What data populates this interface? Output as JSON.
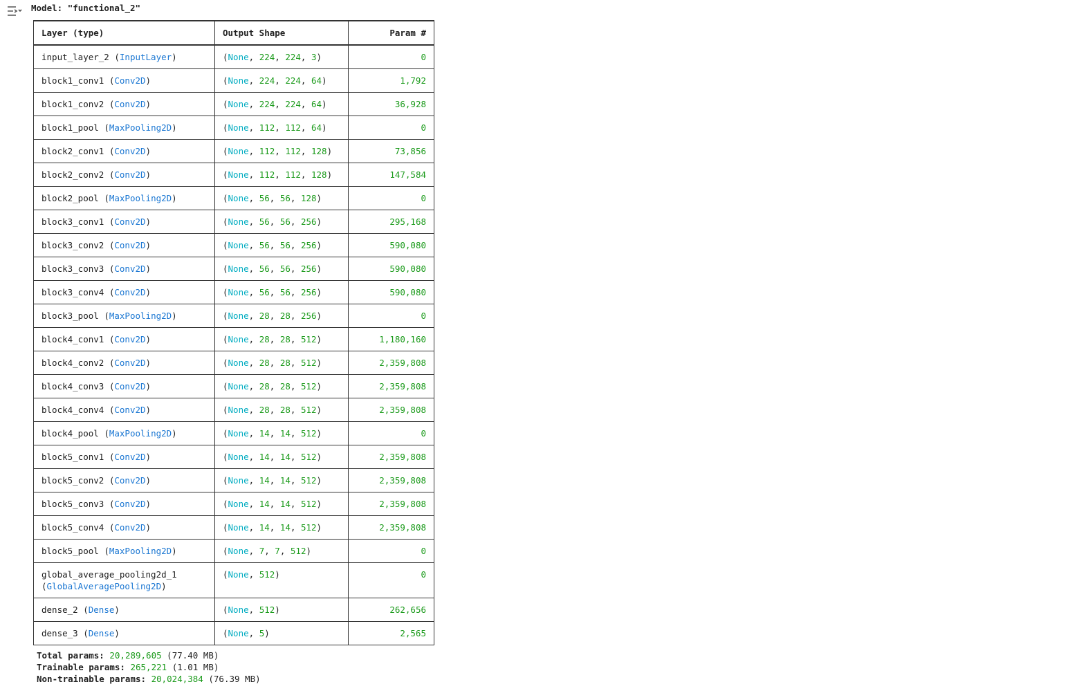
{
  "header": {
    "title_label": "Model:",
    "title": "\"functional_2\""
  },
  "format": {
    "open": "(",
    "sep": ", ",
    "close": ")"
  },
  "table": {
    "columns": [
      "Layer (type)",
      "Output Shape",
      "Param #"
    ],
    "rows": [
      {
        "name": "input_layer_2",
        "type": "InputLayer",
        "shape": [
          "None",
          224,
          224,
          3
        ],
        "params": "0"
      },
      {
        "name": "block1_conv1",
        "type": "Conv2D",
        "shape": [
          "None",
          224,
          224,
          64
        ],
        "params": "1,792"
      },
      {
        "name": "block1_conv2",
        "type": "Conv2D",
        "shape": [
          "None",
          224,
          224,
          64
        ],
        "params": "36,928"
      },
      {
        "name": "block1_pool",
        "type": "MaxPooling2D",
        "shape": [
          "None",
          112,
          112,
          64
        ],
        "params": "0"
      },
      {
        "name": "block2_conv1",
        "type": "Conv2D",
        "shape": [
          "None",
          112,
          112,
          128
        ],
        "params": "73,856"
      },
      {
        "name": "block2_conv2",
        "type": "Conv2D",
        "shape": [
          "None",
          112,
          112,
          128
        ],
        "params": "147,584"
      },
      {
        "name": "block2_pool",
        "type": "MaxPooling2D",
        "shape": [
          "None",
          56,
          56,
          128
        ],
        "params": "0"
      },
      {
        "name": "block3_conv1",
        "type": "Conv2D",
        "shape": [
          "None",
          56,
          56,
          256
        ],
        "params": "295,168"
      },
      {
        "name": "block3_conv2",
        "type": "Conv2D",
        "shape": [
          "None",
          56,
          56,
          256
        ],
        "params": "590,080"
      },
      {
        "name": "block3_conv3",
        "type": "Conv2D",
        "shape": [
          "None",
          56,
          56,
          256
        ],
        "params": "590,080"
      },
      {
        "name": "block3_conv4",
        "type": "Conv2D",
        "shape": [
          "None",
          56,
          56,
          256
        ],
        "params": "590,080"
      },
      {
        "name": "block3_pool",
        "type": "MaxPooling2D",
        "shape": [
          "None",
          28,
          28,
          256
        ],
        "params": "0"
      },
      {
        "name": "block4_conv1",
        "type": "Conv2D",
        "shape": [
          "None",
          28,
          28,
          512
        ],
        "params": "1,180,160"
      },
      {
        "name": "block4_conv2",
        "type": "Conv2D",
        "shape": [
          "None",
          28,
          28,
          512
        ],
        "params": "2,359,808"
      },
      {
        "name": "block4_conv3",
        "type": "Conv2D",
        "shape": [
          "None",
          28,
          28,
          512
        ],
        "params": "2,359,808"
      },
      {
        "name": "block4_conv4",
        "type": "Conv2D",
        "shape": [
          "None",
          28,
          28,
          512
        ],
        "params": "2,359,808"
      },
      {
        "name": "block4_pool",
        "type": "MaxPooling2D",
        "shape": [
          "None",
          14,
          14,
          512
        ],
        "params": "0"
      },
      {
        "name": "block5_conv1",
        "type": "Conv2D",
        "shape": [
          "None",
          14,
          14,
          512
        ],
        "params": "2,359,808"
      },
      {
        "name": "block5_conv2",
        "type": "Conv2D",
        "shape": [
          "None",
          14,
          14,
          512
        ],
        "params": "2,359,808"
      },
      {
        "name": "block5_conv3",
        "type": "Conv2D",
        "shape": [
          "None",
          14,
          14,
          512
        ],
        "params": "2,359,808"
      },
      {
        "name": "block5_conv4",
        "type": "Conv2D",
        "shape": [
          "None",
          14,
          14,
          512
        ],
        "params": "2,359,808"
      },
      {
        "name": "block5_pool",
        "type": "MaxPooling2D",
        "shape": [
          "None",
          7,
          7,
          512
        ],
        "params": "0"
      },
      {
        "name": "global_average_pooling2d_1",
        "type": "GlobalAveragePooling2D",
        "shape": [
          "None",
          512
        ],
        "params": "0"
      },
      {
        "name": "dense_2",
        "type": "Dense",
        "shape": [
          "None",
          512
        ],
        "params": "262,656"
      },
      {
        "name": "dense_3",
        "type": "Dense",
        "shape": [
          "None",
          5
        ],
        "params": "2,565"
      }
    ]
  },
  "summary": [
    {
      "label": "Total params:",
      "value": "20,289,605",
      "size": "(77.40 MB)"
    },
    {
      "label": "Trainable params:",
      "value": "265,221",
      "size": "(1.01 MB)"
    },
    {
      "label": "Non-trainable params:",
      "value": "20,024,384",
      "size": "(76.39 MB)"
    }
  ]
}
